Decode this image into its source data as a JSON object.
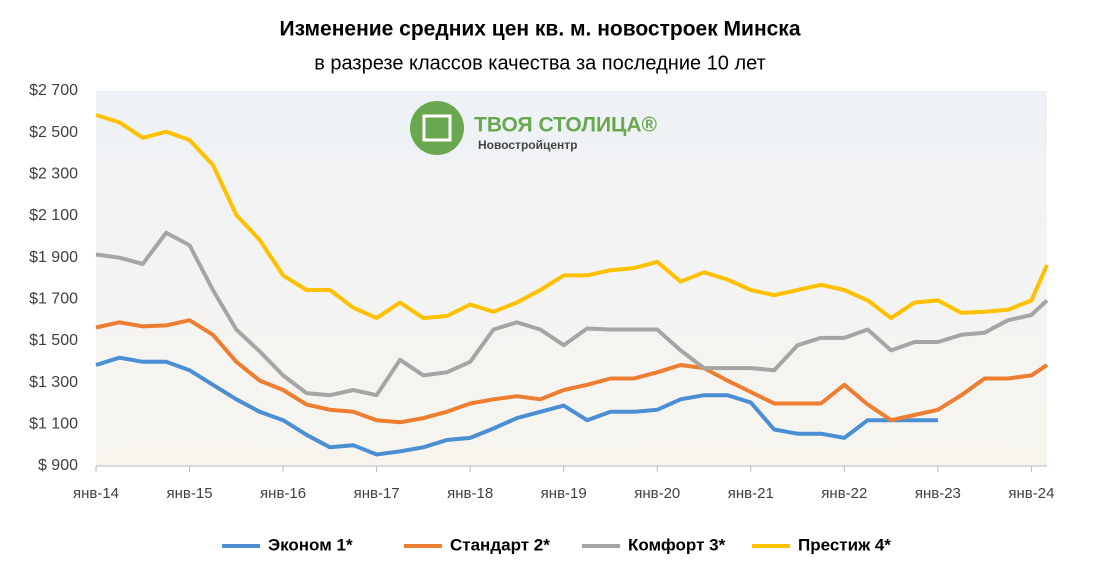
{
  "chart_data": {
    "type": "line",
    "title": "Изменение средних цен кв. м. новостроек Минска",
    "subtitle": "в разрезе классов качества за последние 10 лет",
    "annotations": [
      "ТВОЯ СТОЛИЦА®",
      "Новостройцентр"
    ],
    "x": [
      0,
      3,
      6,
      9,
      12,
      15,
      18,
      21,
      24,
      27,
      30,
      33,
      36,
      39,
      42,
      45,
      48,
      51,
      54,
      57,
      60,
      63,
      66,
      69,
      72,
      75,
      78,
      81,
      84,
      87,
      90,
      93,
      96,
      99,
      102,
      105,
      108,
      111,
      114,
      117,
      120,
      122
    ],
    "xlim": [
      0,
      122
    ],
    "xticks": [
      {
        "value": 0,
        "label": "янв-14"
      },
      {
        "value": 12,
        "label": "янв-15"
      },
      {
        "value": 24,
        "label": "янв-16"
      },
      {
        "value": 36,
        "label": "янв-17"
      },
      {
        "value": 48,
        "label": "янв-18"
      },
      {
        "value": 60,
        "label": "янв-19"
      },
      {
        "value": 72,
        "label": "янв-20"
      },
      {
        "value": 84,
        "label": "янв-21"
      },
      {
        "value": 96,
        "label": "янв-22"
      },
      {
        "value": 108,
        "label": "янв-23"
      },
      {
        "value": 120,
        "label": "янв-24"
      }
    ],
    "ylim": [
      900,
      2700
    ],
    "yticks": [
      {
        "value": 900,
        "label": "$ 900"
      },
      {
        "value": 1100,
        "label": "$1 100"
      },
      {
        "value": 1300,
        "label": "$1 300"
      },
      {
        "value": 1500,
        "label": "$1 500"
      },
      {
        "value": 1700,
        "label": "$1 700"
      },
      {
        "value": 1900,
        "label": "$1 900"
      },
      {
        "value": 2100,
        "label": "$2 100"
      },
      {
        "value": 2300,
        "label": "$2 300"
      },
      {
        "value": 2500,
        "label": "$2 500"
      },
      {
        "value": 2700,
        "label": "$2 700"
      }
    ],
    "grid": false,
    "legend": "bottom",
    "series": [
      {
        "name": "Эконом 1*",
        "color": "#4a8fd4",
        "values": [
          1385,
          1420,
          1400,
          1400,
          1360,
          1290,
          1220,
          1160,
          1120,
          1050,
          990,
          1000,
          955,
          970,
          990,
          1025,
          1035,
          1080,
          1130,
          1160,
          1190,
          1120,
          1160,
          1160,
          1170,
          1220,
          1240,
          1240,
          1205,
          1075,
          1055,
          1055,
          1035,
          1120,
          1120,
          1120,
          1120,
          null,
          null,
          null,
          null,
          null
        ]
      },
      {
        "name": "Стандарт 2*",
        "color": "#ed7d31",
        "values": [
          1565,
          1590,
          1570,
          1575,
          1600,
          1530,
          1400,
          1310,
          1265,
          1195,
          1170,
          1160,
          1120,
          1110,
          1130,
          1160,
          1200,
          1220,
          1235,
          1220,
          1265,
          1290,
          1320,
          1320,
          1350,
          1385,
          1370,
          1310,
          1255,
          1200,
          1200,
          1200,
          1290,
          1195,
          1120,
          1145,
          1170,
          1240,
          1320,
          1320,
          1335,
          1385
        ]
      },
      {
        "name": "Комфорт 3*",
        "color": "#a5a5a5",
        "values": [
          1915,
          1900,
          1870,
          2020,
          1960,
          1745,
          1555,
          1450,
          1335,
          1250,
          1240,
          1265,
          1240,
          1410,
          1335,
          1350,
          1400,
          1555,
          1590,
          1555,
          1480,
          1560,
          1555,
          1555,
          1555,
          1455,
          1370,
          1370,
          1370,
          1360,
          1480,
          1515,
          1515,
          1555,
          1455,
          1495,
          1495,
          1530,
          1540,
          1600,
          1625,
          1695
        ]
      },
      {
        "name": "Престиж 4*",
        "color": "#ffc000",
        "values": [
          2585,
          2550,
          2475,
          2505,
          2465,
          2345,
          2105,
          1985,
          1815,
          1745,
          1745,
          1660,
          1610,
          1685,
          1610,
          1620,
          1675,
          1640,
          1685,
          1745,
          1815,
          1815,
          1840,
          1850,
          1880,
          1785,
          1830,
          1795,
          1745,
          1720,
          1745,
          1770,
          1745,
          1695,
          1610,
          1685,
          1695,
          1635,
          1640,
          1650,
          1695,
          1865
        ]
      }
    ]
  }
}
